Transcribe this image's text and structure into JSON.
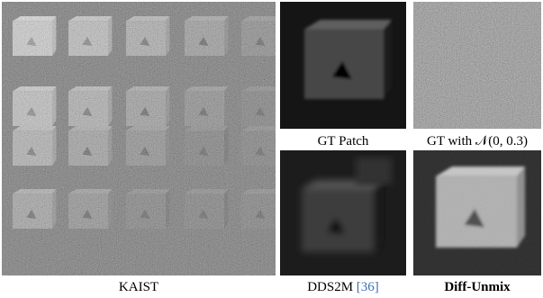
{
  "panels": [
    {
      "caption": "KAIST"
    },
    {
      "caption": "GT Patch"
    },
    {
      "caption": "GT with 𝒩(0, 0.3)"
    },
    {
      "caption": "DDS2M",
      "citation": "[36]"
    },
    {
      "caption": "Diff-Unmix"
    }
  ]
}
